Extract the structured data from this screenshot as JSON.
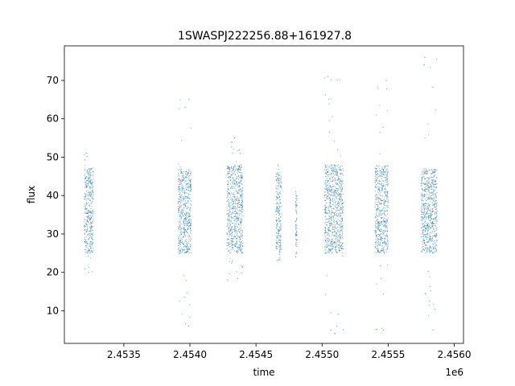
{
  "chart_data": {
    "type": "scatter",
    "title": "1SWASPJ222256.88+161927.8",
    "xlabel": "time",
    "ylabel": "flux",
    "x_offset_label": "1e6",
    "xlim": [
      2.45305,
      2.45607
    ],
    "ylim": [
      1.5,
      79
    ],
    "x_ticks": [
      2.4535,
      2.454,
      2.4545,
      2.455,
      2.4555,
      2.456
    ],
    "x_tick_labels": [
      "2.4535",
      "2.4540",
      "2.4545",
      "2.4550",
      "2.4555",
      "2.4560"
    ],
    "y_ticks": [
      10,
      20,
      30,
      40,
      50,
      60,
      70
    ],
    "y_tick_labels": [
      "10",
      "20",
      "30",
      "40",
      "50",
      "60",
      "70"
    ],
    "grid": false,
    "marker_color": "#1f77b4",
    "series": [
      {
        "clusters": [
          {
            "x_start": 2.4532,
            "x_end": 2.45327,
            "y_low": 25,
            "y_high": 47,
            "y_min": 20,
            "y_max": 51
          },
          {
            "x_start": 2.45391,
            "x_end": 2.45401,
            "y_low": 25,
            "y_high": 47,
            "y_min": 6,
            "y_max": 65
          },
          {
            "x_start": 2.45428,
            "x_end": 2.4544,
            "y_low": 25,
            "y_high": 48,
            "y_min": 18,
            "y_max": 55
          },
          {
            "x_start": 2.45465,
            "x_end": 2.45469,
            "y_low": 25,
            "y_high": 46,
            "y_min": 23,
            "y_max": 48
          },
          {
            "x_start": 2.4548,
            "x_end": 2.45481,
            "y_low": 27,
            "y_high": 40,
            "y_min": 24,
            "y_max": 41
          },
          {
            "x_start": 2.45502,
            "x_end": 2.45516,
            "y_low": 25,
            "y_high": 48,
            "y_min": 4,
            "y_max": 71
          },
          {
            "x_start": 2.4554,
            "x_end": 2.4555,
            "y_low": 25,
            "y_high": 48,
            "y_min": 5,
            "y_max": 70
          },
          {
            "x_start": 2.45575,
            "x_end": 2.45587,
            "y_low": 25,
            "y_high": 47,
            "y_min": 5,
            "y_max": 76
          }
        ]
      }
    ]
  }
}
